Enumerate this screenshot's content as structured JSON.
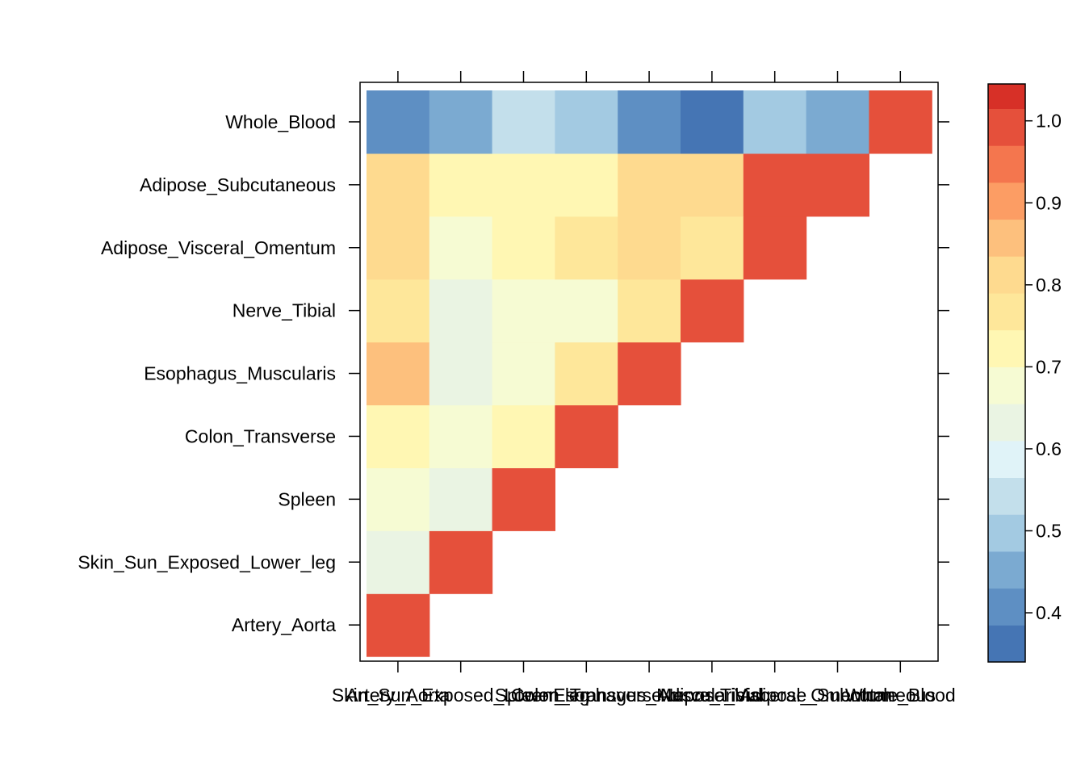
{
  "chart_data": {
    "type": "heatmap",
    "title": "",
    "xlabel": "",
    "ylabel": "",
    "categories": [
      "Artery_Aorta",
      "Skin_Sun_Exposed_Lower_leg",
      "Spleen",
      "Colon_Transverse",
      "Esophagus_Muscularis",
      "Nerve_Tibial",
      "Adipose_Visceral_Omentum",
      "Adipose_Subcutaneous",
      "Whole_Blood"
    ],
    "matrix": [
      [
        1.0,
        null,
        null,
        null,
        null,
        null,
        null,
        null,
        null
      ],
      [
        0.63,
        1.0,
        null,
        null,
        null,
        null,
        null,
        null,
        null
      ],
      [
        0.67,
        0.63,
        1.0,
        null,
        null,
        null,
        null,
        null,
        null
      ],
      [
        0.72,
        0.67,
        0.72,
        1.0,
        null,
        null,
        null,
        null,
        null
      ],
      [
        0.85,
        0.63,
        0.67,
        0.77,
        1.0,
        null,
        null,
        null,
        null
      ],
      [
        0.77,
        0.63,
        0.67,
        0.67,
        0.77,
        1.0,
        null,
        null,
        null
      ],
      [
        0.82,
        0.67,
        0.72,
        0.77,
        0.82,
        0.77,
        1.0,
        null,
        null
      ],
      [
        0.82,
        0.72,
        0.72,
        0.72,
        0.82,
        0.82,
        0.97,
        1.0,
        null
      ],
      [
        0.42,
        0.47,
        0.53,
        0.51,
        0.42,
        0.37,
        0.51,
        0.47,
        1.0
      ]
    ],
    "colorbar": {
      "ticks": [
        "0.4",
        "0.5",
        "0.6",
        "0.7",
        "0.8",
        "0.9",
        "1.0"
      ],
      "tick_values": [
        0.4,
        0.5,
        0.6,
        0.7,
        0.8,
        0.9,
        1.0
      ],
      "breaks": [
        0.34,
        0.385,
        0.43,
        0.475,
        0.52,
        0.565,
        0.61,
        0.655,
        0.7,
        0.745,
        0.79,
        0.835,
        0.88,
        0.925,
        0.97,
        1.015,
        1.045
      ],
      "colors": [
        "#4575B4",
        "#5E8FC3",
        "#7BAAD1",
        "#A3CAE2",
        "#C3DFEB",
        "#E0F3F8",
        "#EAF4E3",
        "#F6FBD3",
        "#FFF7B3",
        "#FEE79A",
        "#FEDA8F",
        "#FDC07D",
        "#FC9D64",
        "#F4764E",
        "#E5503B",
        "#D73027"
      ]
    }
  }
}
